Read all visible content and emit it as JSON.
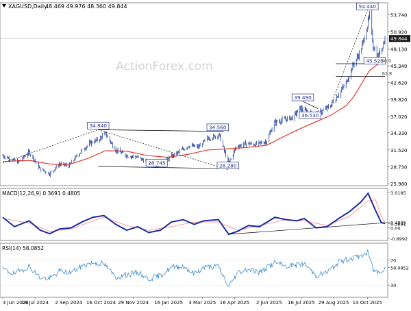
{
  "header": {
    "symbol_label": "XAGUSD,Daily",
    "ohlc": "48.469 49.976 48.360 49.844",
    "dropdown_icon": "triangle-down-icon"
  },
  "watermark": "ActionForex.com",
  "colors": {
    "price_bars": "#1f3f99",
    "ma": "#e8261c",
    "trendline": "#000000",
    "macd": "#1a2aa0",
    "macd_signal": "#ff9a9a",
    "rsi": "#4a96d4",
    "current_price_box": "#1a1a1a",
    "label_text": "#1e2e8c",
    "grid": "#c8c8c8",
    "watermark": "#d0d0d0"
  },
  "chart_data": [
    {
      "type": "candlestick",
      "panel": "price",
      "series_name": "XAGUSD,Daily",
      "ohlc_last": {
        "open": 48.469,
        "high": 49.976,
        "low": 48.36,
        "close": 49.844
      },
      "y_ticks": [
        "53.740",
        "50.920",
        "49.844",
        "48.130",
        "45.340",
        "42.620",
        "39.820",
        "37.020",
        "34.330",
        "31.520",
        "28.730",
        "25.980"
      ],
      "ylim": [
        25.98,
        54.6
      ],
      "current_price": "49.844",
      "close_points": [
        [
          "2024-06-04",
          30.6
        ],
        [
          "2024-06-25",
          29.5
        ],
        [
          "2024-07-10",
          31.2
        ],
        [
          "2024-07-25",
          28.4
        ],
        [
          "2024-08-07",
          27.6
        ],
        [
          "2024-08-20",
          29.2
        ],
        [
          "2024-09-02",
          28.9
        ],
        [
          "2024-09-15",
          30.8
        ],
        [
          "2024-09-30",
          32.6
        ],
        [
          "2024-10-12",
          33.2
        ],
        [
          "2024-10-22",
          34.2
        ],
        [
          "2024-11-05",
          31.5
        ],
        [
          "2024-11-20",
          30.6
        ],
        [
          "2024-12-05",
          30.3
        ],
        [
          "2024-12-18",
          29.5
        ],
        [
          "2024-12-31",
          29.0
        ],
        [
          "2025-01-15",
          30.0
        ],
        [
          "2025-01-30",
          31.2
        ],
        [
          "2025-02-12",
          32.2
        ],
        [
          "2025-02-26",
          32.0
        ],
        [
          "2025-03-10",
          33.4
        ],
        [
          "2025-03-26",
          34.0
        ],
        [
          "2025-04-03",
          31.0
        ],
        [
          "2025-04-08",
          29.3
        ],
        [
          "2025-04-18",
          32.0
        ],
        [
          "2025-05-01",
          32.6
        ],
        [
          "2025-05-15",
          32.4
        ],
        [
          "2025-05-30",
          33.0
        ],
        [
          "2025-06-09",
          36.0
        ],
        [
          "2025-06-20",
          36.4
        ],
        [
          "2025-07-05",
          36.9
        ],
        [
          "2025-07-14",
          38.4
        ],
        [
          "2025-07-25",
          37.7
        ],
        [
          "2025-08-04",
          37.3
        ],
        [
          "2025-08-15",
          38.0
        ],
        [
          "2025-08-25",
          38.8
        ],
        [
          "2025-09-04",
          40.6
        ],
        [
          "2025-09-15",
          42.5
        ],
        [
          "2025-09-25",
          45.6
        ],
        [
          "2025-10-05",
          47.8
        ],
        [
          "2025-10-12",
          51.0
        ],
        [
          "2025-10-17",
          53.6
        ],
        [
          "2025-10-22",
          48.6
        ],
        [
          "2025-10-28",
          46.9
        ],
        [
          "2025-11-03",
          48.4
        ],
        [
          "2025-11-07",
          49.84
        ]
      ],
      "moving_average": [
        [
          "2024-06-04",
          29.6
        ],
        [
          "2024-07-10",
          29.8
        ],
        [
          "2024-08-07",
          29.2
        ],
        [
          "2024-09-02",
          29.1
        ],
        [
          "2024-09-30",
          30.2
        ],
        [
          "2024-10-22",
          31.4
        ],
        [
          "2024-11-20",
          31.3
        ],
        [
          "2024-12-18",
          30.6
        ],
        [
          "2025-01-15",
          30.3
        ],
        [
          "2025-02-12",
          30.8
        ],
        [
          "2025-03-10",
          31.5
        ],
        [
          "2025-04-08",
          31.7
        ],
        [
          "2025-05-01",
          31.9
        ],
        [
          "2025-05-30",
          32.3
        ],
        [
          "2025-06-20",
          33.6
        ],
        [
          "2025-07-14",
          35.0
        ],
        [
          "2025-08-04",
          36.1
        ],
        [
          "2025-08-25",
          37.2
        ],
        [
          "2025-09-15",
          38.8
        ],
        [
          "2025-09-25",
          40.2
        ],
        [
          "2025-10-05",
          42.2
        ],
        [
          "2025-10-17",
          44.6
        ],
        [
          "2025-10-28",
          45.6
        ],
        [
          "2025-11-07",
          46.1
        ]
      ],
      "annotations": [
        {
          "text": "34.840",
          "x": "2024-10-12",
          "y": 34.84
        },
        {
          "text": "34.560",
          "x": "2025-03-24",
          "y": 34.56
        },
        {
          "text": "28.745",
          "x": "2024-12-31",
          "y": 28.745
        },
        {
          "text": "28.280",
          "x": "2025-04-07",
          "y": 28.28
        },
        {
          "text": "39.490",
          "x": "2025-07-18",
          "y": 39.49
        },
        {
          "text": "36.530",
          "x": "2025-07-28",
          "y": 36.53
        },
        {
          "text": "54.440",
          "x": "2025-10-14",
          "y": 54.44
        },
        {
          "text": "45.520",
          "x": "2025-10-24",
          "y": 45.52
        },
        {
          "text": "50.0",
          "x": "2025-11-02",
          "y": 45.7
        },
        {
          "text": "61.8",
          "x": "2025-11-03",
          "y": 43.6
        }
      ],
      "trendlines": [
        {
          "from": [
            "2024-06-04",
            29.4
          ],
          "to": [
            "2024-10-12",
            34.84
          ],
          "style": "dashed"
        },
        {
          "from": [
            "2024-10-12",
            34.84
          ],
          "to": [
            "2025-04-07",
            28.28
          ],
          "style": "dashed"
        },
        {
          "from": [
            "2024-10-12",
            34.84
          ],
          "to": [
            "2025-04-01",
            34.56
          ],
          "style": "solid"
        },
        {
          "from": [
            "2024-10-12",
            28.8
          ],
          "to": [
            "2025-04-01",
            28.45
          ],
          "style": "solid"
        },
        {
          "from": [
            "2025-07-18",
            39.49
          ],
          "to": [
            "2025-08-08",
            38.3
          ],
          "style": "solid"
        },
        {
          "from": [
            "2025-07-18",
            37.2
          ],
          "to": [
            "2025-08-08",
            37.5
          ],
          "style": "solid"
        },
        {
          "from": [
            "2025-08-25",
            38.8
          ],
          "to": [
            "2025-10-14",
            54.44
          ],
          "style": "dashed"
        },
        {
          "from": [
            "2025-09-01",
            45.7
          ],
          "to": [
            "2025-11-07",
            45.7
          ],
          "style": "solid"
        },
        {
          "from": [
            "2025-09-01",
            43.6
          ],
          "to": [
            "2025-11-07",
            43.6
          ],
          "style": "solid"
        }
      ]
    },
    {
      "type": "line",
      "panel": "macd",
      "label": "MACD(12,26,9) 0.3691 0.4805",
      "y_ticks": [
        "3.0185",
        "0.4805",
        "0.3691",
        "0.00",
        "-0.8992"
      ],
      "ylim": [
        -0.8992,
        3.0185
      ],
      "series": [
        {
          "name": "MACD",
          "points": [
            [
              "2024-06-04",
              0.9
            ],
            [
              "2024-06-20",
              0.1
            ],
            [
              "2024-07-10",
              0.6
            ],
            [
              "2024-07-25",
              -0.2
            ],
            [
              "2024-08-07",
              -0.5
            ],
            [
              "2024-08-20",
              -0.1
            ],
            [
              "2024-09-05",
              0.0
            ],
            [
              "2024-09-20",
              0.5
            ],
            [
              "2024-10-05",
              0.9
            ],
            [
              "2024-10-20",
              1.05
            ],
            [
              "2024-11-05",
              0.3
            ],
            [
              "2024-11-20",
              -0.2
            ],
            [
              "2024-12-05",
              0.1
            ],
            [
              "2024-12-20",
              -0.4
            ],
            [
              "2025-01-05",
              -0.2
            ],
            [
              "2025-01-20",
              0.5
            ],
            [
              "2025-02-05",
              0.7
            ],
            [
              "2025-02-20",
              0.3
            ],
            [
              "2025-03-05",
              0.6
            ],
            [
              "2025-03-25",
              0.7
            ],
            [
              "2025-04-08",
              -0.55
            ],
            [
              "2025-04-20",
              -0.3
            ],
            [
              "2025-05-05",
              0.2
            ],
            [
              "2025-05-20",
              0.1
            ],
            [
              "2025-06-10",
              0.9
            ],
            [
              "2025-06-25",
              0.7
            ],
            [
              "2025-07-10",
              0.6
            ],
            [
              "2025-07-20",
              0.8
            ],
            [
              "2025-08-05",
              0.0
            ],
            [
              "2025-08-20",
              0.1
            ],
            [
              "2025-09-05",
              0.8
            ],
            [
              "2025-09-20",
              1.4
            ],
            [
              "2025-10-05",
              2.2
            ],
            [
              "2025-10-15",
              2.95
            ],
            [
              "2025-10-25",
              1.5
            ],
            [
              "2025-11-02",
              0.45
            ],
            [
              "2025-11-07",
              0.37
            ]
          ]
        },
        {
          "name": "Signal",
          "points": [
            [
              "2024-06-04",
              0.8
            ],
            [
              "2024-07-10",
              0.4
            ],
            [
              "2024-08-07",
              -0.3
            ],
            [
              "2024-09-05",
              -0.1
            ],
            [
              "2024-10-05",
              0.6
            ],
            [
              "2024-10-20",
              0.9
            ],
            [
              "2024-11-20",
              0.2
            ],
            [
              "2024-12-20",
              -0.2
            ],
            [
              "2025-01-20",
              0.1
            ],
            [
              "2025-02-20",
              0.5
            ],
            [
              "2025-03-25",
              0.5
            ],
            [
              "2025-04-20",
              -0.2
            ],
            [
              "2025-05-20",
              0.2
            ],
            [
              "2025-06-25",
              0.7
            ],
            [
              "2025-07-20",
              0.6
            ],
            [
              "2025-08-20",
              0.2
            ],
            [
              "2025-09-20",
              1.0
            ],
            [
              "2025-10-15",
              2.3
            ],
            [
              "2025-10-25",
              2.4
            ],
            [
              "2025-11-02",
              1.0
            ],
            [
              "2025-11-07",
              0.48
            ]
          ]
        }
      ],
      "trendline": {
        "from": [
          "2025-04-08",
          -0.55
        ],
        "to": [
          "2025-11-10",
          0.45
        ]
      }
    },
    {
      "type": "line",
      "panel": "rsi",
      "label": "RSI(14) 58.0852",
      "y_ticks": [
        "70",
        "58.0852",
        "30"
      ],
      "ylim": [
        15,
        90
      ],
      "series": [
        {
          "name": "RSI",
          "points": [
            [
              "2024-06-04",
              55
            ],
            [
              "2024-06-20",
              48
            ],
            [
              "2024-07-10",
              60
            ],
            [
              "2024-07-25",
              42
            ],
            [
              "2024-08-07",
              40
            ],
            [
              "2024-08-20",
              52
            ],
            [
              "2024-09-05",
              50
            ],
            [
              "2024-09-20",
              60
            ],
            [
              "2024-10-05",
              66
            ],
            [
              "2024-10-20",
              64
            ],
            [
              "2024-11-05",
              42
            ],
            [
              "2024-11-20",
              46
            ],
            [
              "2024-12-05",
              50
            ],
            [
              "2024-12-20",
              40
            ],
            [
              "2025-01-05",
              45
            ],
            [
              "2025-01-20",
              58
            ],
            [
              "2025-02-05",
              60
            ],
            [
              "2025-02-20",
              48
            ],
            [
              "2025-03-05",
              58
            ],
            [
              "2025-03-25",
              60
            ],
            [
              "2025-04-08",
              27
            ],
            [
              "2025-04-20",
              50
            ],
            [
              "2025-05-05",
              56
            ],
            [
              "2025-05-20",
              50
            ],
            [
              "2025-06-10",
              66
            ],
            [
              "2025-06-25",
              60
            ],
            [
              "2025-07-10",
              62
            ],
            [
              "2025-07-20",
              64
            ],
            [
              "2025-08-05",
              45
            ],
            [
              "2025-08-20",
              50
            ],
            [
              "2025-09-05",
              66
            ],
            [
              "2025-09-20",
              72
            ],
            [
              "2025-10-05",
              76
            ],
            [
              "2025-10-15",
              82
            ],
            [
              "2025-10-22",
              54
            ],
            [
              "2025-10-30",
              50
            ],
            [
              "2025-11-07",
              58.0852
            ]
          ]
        }
      ]
    }
  ],
  "x_axis": {
    "labels": [
      "4 Jun 2024",
      "18 Jul 2024",
      "2 Sep 2024",
      "16 Oct 2024",
      "29 Nov 2024",
      "16 Jan 2025",
      "3 Mar 2025",
      "16 Apr 2025",
      "2 Jun 2025",
      "16 Jul 2025",
      "29 Aug 2025",
      "14 Oct 2025"
    ],
    "dates": [
      "2024-06-04",
      "2024-07-18",
      "2024-09-02",
      "2024-10-16",
      "2024-11-29",
      "2025-01-16",
      "2025-03-03",
      "2025-04-16",
      "2025-06-02",
      "2025-07-16",
      "2025-08-29",
      "2025-10-14"
    ]
  }
}
